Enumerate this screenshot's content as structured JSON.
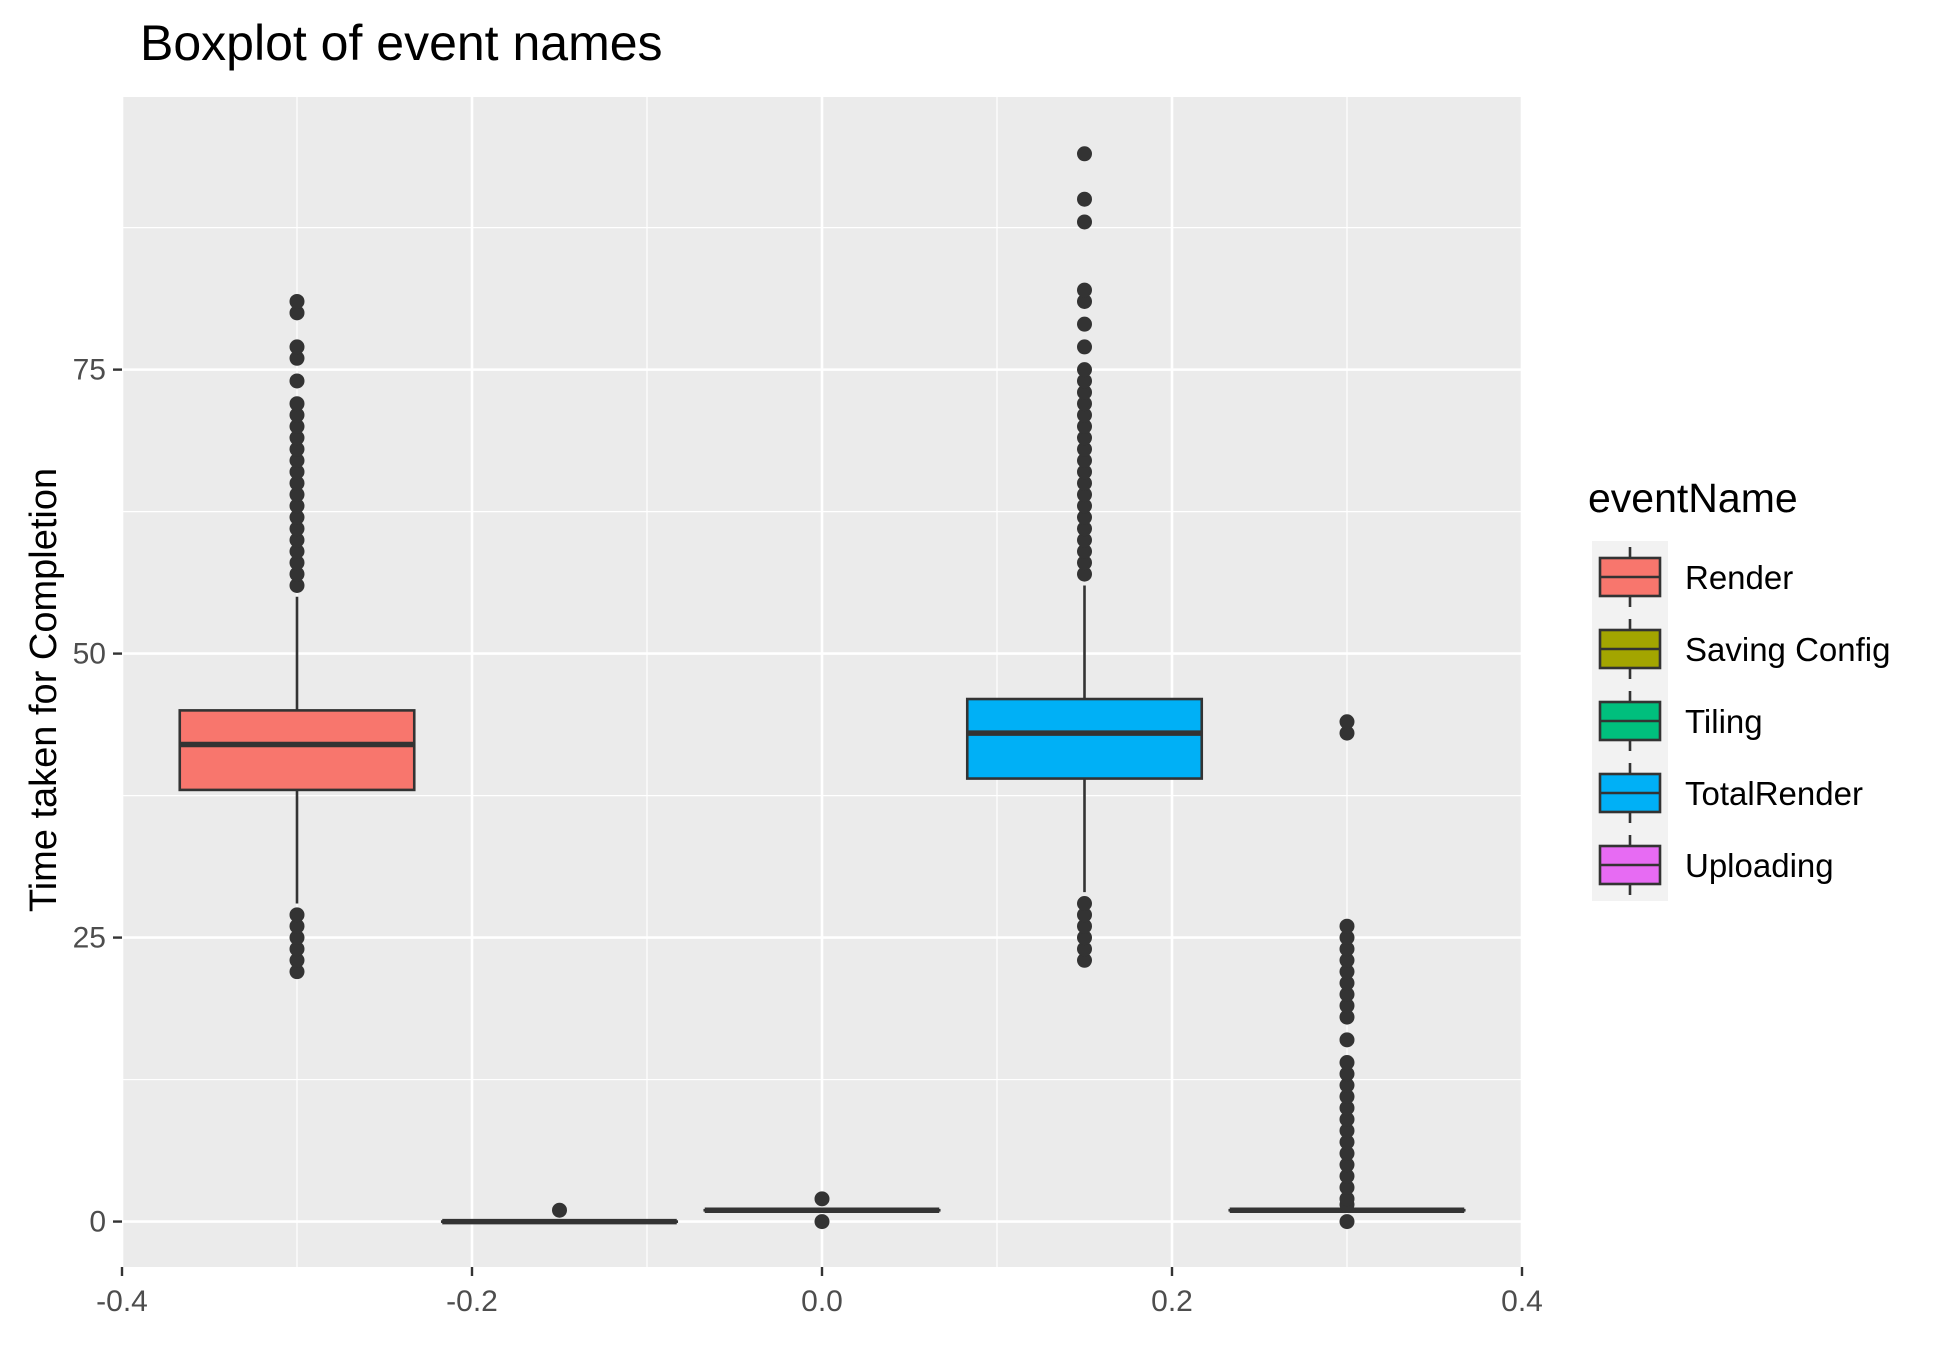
{
  "chart_data": {
    "type": "boxplot",
    "title": "Boxplot of event names",
    "xlabel": "",
    "ylabel": "Time taken for Completion",
    "xlim": [
      -0.4,
      0.4
    ],
    "ylim": [
      -4,
      99
    ],
    "x_ticks": [
      -0.4,
      -0.2,
      0.0,
      0.2,
      0.4
    ],
    "x_tick_labels": [
      "-0.4",
      "-0.2",
      "0.0",
      "0.2",
      "0.4"
    ],
    "y_ticks": [
      0,
      25,
      50,
      75
    ],
    "y_tick_labels": [
      "0",
      "25",
      "50",
      "75"
    ],
    "grid": true,
    "background": "#ebebeb",
    "legend": {
      "title": "eventName",
      "position": "right",
      "entries": [
        {
          "label": "Render",
          "color": "#f8766d"
        },
        {
          "label": "Saving Config",
          "color": "#a3a500"
        },
        {
          "label": "Tiling",
          "color": "#00bf7d"
        },
        {
          "label": "TotalRender",
          "color": "#00b0f6"
        },
        {
          "label": "Uploading",
          "color": "#e76bf3"
        }
      ]
    },
    "series": [
      {
        "name": "Render",
        "color": "#f8766d",
        "x": -0.3,
        "box_left": -0.367,
        "box_right": -0.233,
        "whisker_low": 28,
        "q1": 38,
        "median": 42,
        "q3": 45,
        "whisker_high": 55,
        "outliers": [
          22,
          23,
          24,
          25,
          26,
          27,
          56,
          57,
          58,
          59,
          60,
          61,
          62,
          63,
          64,
          65,
          66,
          67,
          68,
          69,
          70,
          71,
          72,
          74,
          76,
          77,
          80,
          81
        ]
      },
      {
        "name": "Saving Config",
        "color": "#a3a500",
        "x": -0.15,
        "box_left": -0.217,
        "box_right": -0.083,
        "whisker_low": 0,
        "q1": 0,
        "median": 0,
        "q3": 0,
        "whisker_high": 0,
        "outliers": [
          1
        ]
      },
      {
        "name": "Tiling",
        "color": "#00bf7d",
        "x": 0.0,
        "box_left": -0.067,
        "box_right": 0.067,
        "whisker_low": 1,
        "q1": 1,
        "median": 1,
        "q3": 1,
        "whisker_high": 1,
        "outliers": [
          0,
          2
        ]
      },
      {
        "name": "TotalRender",
        "color": "#00b0f6",
        "x": 0.15,
        "box_left": 0.083,
        "box_right": 0.217,
        "whisker_low": 29,
        "q1": 39,
        "median": 43,
        "q3": 46,
        "whisker_high": 56,
        "outliers": [
          23,
          24,
          25,
          26,
          27,
          28,
          57,
          58,
          59,
          60,
          61,
          62,
          63,
          64,
          65,
          66,
          67,
          68,
          69,
          70,
          71,
          72,
          73,
          74,
          75,
          77,
          79,
          81,
          82,
          88,
          90,
          94
        ]
      },
      {
        "name": "Uploading",
        "color": "#e76bf3",
        "x": 0.3,
        "box_left": 0.233,
        "box_right": 0.367,
        "whisker_low": 1,
        "q1": 1,
        "median": 1,
        "q3": 1,
        "whisker_high": 1,
        "outliers": [
          0,
          1.5,
          2,
          3,
          4,
          5,
          6,
          7,
          8,
          9,
          10,
          11,
          12,
          13,
          14,
          16,
          18,
          19,
          20,
          21,
          22,
          23,
          24,
          25,
          26,
          43,
          44
        ]
      }
    ]
  }
}
